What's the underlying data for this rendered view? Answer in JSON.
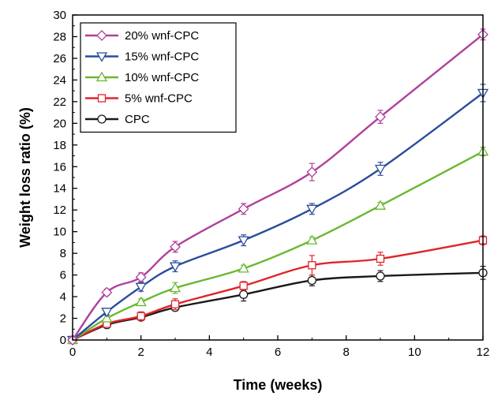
{
  "chart_data": {
    "type": "line",
    "xlabel": "Time (weeks)",
    "ylabel": "Weight loss ratio (%)",
    "xlim": [
      0,
      12
    ],
    "ylim": [
      0,
      30
    ],
    "x_ticks": [
      0,
      2,
      4,
      6,
      8,
      10,
      12
    ],
    "y_ticks": [
      0,
      2,
      4,
      6,
      8,
      10,
      12,
      14,
      16,
      18,
      20,
      22,
      24,
      26,
      28,
      30
    ],
    "grid": false,
    "legend_position": "top-left",
    "x": [
      0,
      1,
      2,
      3,
      5,
      7,
      9,
      12
    ],
    "series": [
      {
        "name": "20% wnf-CPC",
        "marker": "diamond",
        "color": "#b0409c",
        "values": [
          0,
          4.4,
          5.8,
          8.6,
          12.1,
          15.5,
          20.6,
          28.2
        ],
        "errors": [
          0,
          0.3,
          0.4,
          0.5,
          0.5,
          0.8,
          0.6,
          0.5
        ]
      },
      {
        "name": "15% wnf-CPC",
        "marker": "triangle-down",
        "color": "#2a4c9c",
        "values": [
          0,
          2.6,
          4.9,
          6.8,
          9.2,
          12.1,
          15.8,
          22.8
        ],
        "errors": [
          0,
          0.3,
          0.4,
          0.5,
          0.5,
          0.5,
          0.6,
          0.8
        ]
      },
      {
        "name": "10% wnf-CPC",
        "marker": "triangle-up",
        "color": "#6ab830",
        "values": [
          0,
          2.0,
          3.5,
          4.8,
          6.6,
          9.2,
          12.4,
          17.4
        ],
        "errors": [
          0,
          0.3,
          0.3,
          0.5,
          0.3,
          0.3,
          0.3,
          0.4
        ]
      },
      {
        "name": "5% wnf-CPC",
        "marker": "square",
        "color": "#e0242a",
        "values": [
          0,
          1.5,
          2.2,
          3.3,
          5.0,
          6.9,
          7.5,
          9.2
        ],
        "errors": [
          0,
          0.3,
          0.4,
          0.5,
          0.4,
          0.9,
          0.6,
          0.4
        ]
      },
      {
        "name": "CPC",
        "marker": "circle",
        "color": "#1a1a1a",
        "values": [
          0,
          1.4,
          2.1,
          3.0,
          4.2,
          5.5,
          5.9,
          6.2
        ],
        "errors": [
          0,
          0.2,
          0.3,
          0.3,
          0.6,
          0.5,
          0.5,
          0.6
        ]
      }
    ]
  }
}
